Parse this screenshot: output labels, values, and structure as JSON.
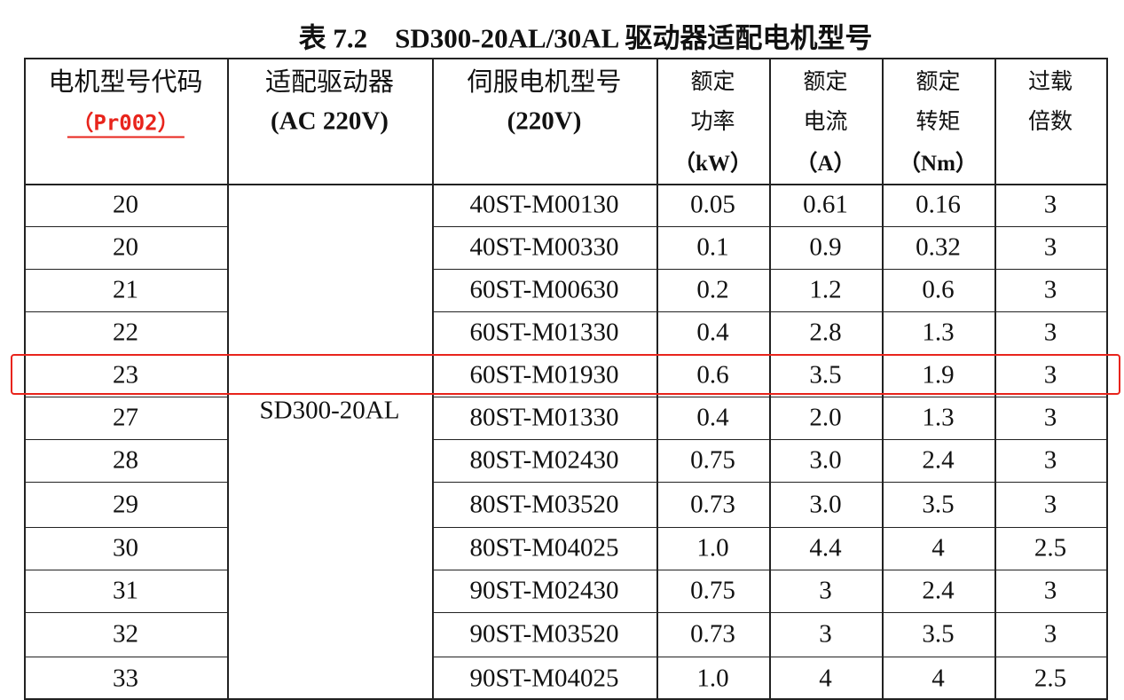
{
  "title": "表 7.2　SD300-20AL/30AL 驱动器适配电机型号",
  "table": {
    "header": [
      [
        "电机型号代码",
        "（Pr002）"
      ],
      [
        "适配驱动器",
        "(AC 220V)"
      ],
      [
        "伺服电机型号",
        "(220V)"
      ],
      [
        "额定",
        "功率",
        "（kW）"
      ],
      [
        "额定",
        "电流",
        "（A）"
      ],
      [
        "额定",
        "转矩",
        "（Nm）"
      ],
      [
        "过载",
        "倍数"
      ]
    ],
    "driver": "SD300-20AL",
    "rows": [
      [
        "20",
        "40ST-M00130",
        "0.05",
        "0.61",
        "0.16",
        "3"
      ],
      [
        "20",
        "40ST-M00330",
        "0.1",
        "0.9",
        "0.32",
        "3"
      ],
      [
        "21",
        "60ST-M00630",
        "0.2",
        "1.2",
        "0.6",
        "3"
      ],
      [
        "22",
        "60ST-M01330",
        "0.4",
        "2.8",
        "1.3",
        "3"
      ],
      [
        "23",
        "60ST-M01930",
        "0.6",
        "3.5",
        "1.9",
        "3"
      ],
      [
        "27",
        "80ST-M01330",
        "0.4",
        "2.0",
        "1.3",
        "3"
      ],
      [
        "28",
        "80ST-M02430",
        "0.75",
        "3.0",
        "2.4",
        "3"
      ],
      [
        "29",
        "80ST-M03520",
        "0.73",
        "3.0",
        "3.5",
        "3"
      ],
      [
        "30",
        "80ST-M04025",
        "1.0",
        "4.4",
        "4",
        "2.5"
      ],
      [
        "31",
        "90ST-M02430",
        "0.75",
        "3",
        "2.4",
        "3"
      ],
      [
        "32",
        "90ST-M03520",
        "0.73",
        "3",
        "3.5",
        "3"
      ],
      [
        "33",
        "90ST-M04025",
        "1.0",
        "4",
        "4",
        "2.5"
      ]
    ]
  }
}
